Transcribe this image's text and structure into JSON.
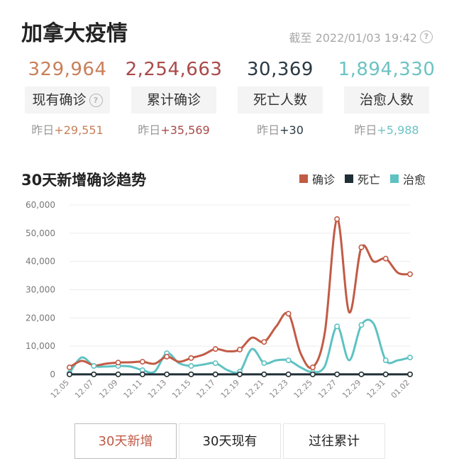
{
  "header": {
    "title": "加拿大疫情",
    "as_of": "截至 2022/01/03 19:42"
  },
  "stats": [
    {
      "value": "329,964",
      "label": "现有确诊",
      "delta": "昨日+29,551",
      "color": "#c8805a",
      "has_help": true
    },
    {
      "value": "2,254,663",
      "label": "累计确诊",
      "delta": "昨日+35,569",
      "color": "#a94a4a",
      "has_help": false
    },
    {
      "value": "30,369",
      "label": "死亡人数",
      "delta": "昨日+30",
      "color": "#2b3a44",
      "has_help": false
    },
    {
      "value": "1,894,330",
      "label": "治愈人数",
      "delta": "昨日+5,988",
      "color": "#6cc3c3",
      "has_help": false
    }
  ],
  "chart_section": {
    "title": "30天新增确诊趋势",
    "legend": [
      {
        "label": "确诊",
        "color": "#c25b46"
      },
      {
        "label": "死亡",
        "color": "#1f2f36"
      },
      {
        "label": "治愈",
        "color": "#5ec2c2"
      }
    ]
  },
  "tabs": [
    {
      "label": "30天新增",
      "active": true
    },
    {
      "label": "30天现有",
      "active": false
    },
    {
      "label": "过往累计",
      "active": false
    }
  ],
  "chart_data": {
    "type": "line",
    "x": [
      "12.05",
      "12.06",
      "12.07",
      "12.08",
      "12.09",
      "12.10",
      "12.11",
      "12.12",
      "12.13",
      "12.14",
      "12.15",
      "12.16",
      "12.17",
      "12.18",
      "12.19",
      "12.20",
      "12.21",
      "12.22",
      "12.23",
      "12.24",
      "12.25",
      "12.26",
      "12.27",
      "12.28",
      "12.29",
      "12.30",
      "12.31",
      "01.01",
      "01.02"
    ],
    "xticks": [
      "12.05",
      "12.07",
      "12.09",
      "12.11",
      "12.13",
      "12.15",
      "12.17",
      "12.19",
      "12.21",
      "12.23",
      "12.25",
      "12.27",
      "12.29",
      "12.31",
      "01.02"
    ],
    "yticks": [
      0,
      10000,
      20000,
      30000,
      40000,
      50000,
      60000
    ],
    "ytick_labels": [
      "0",
      "10,000",
      "20,000",
      "30,000",
      "40,000",
      "50,000",
      "60,000"
    ],
    "ylim": [
      0,
      60000
    ],
    "grid": true,
    "legend_position": "top-right",
    "series": [
      {
        "name": "确诊",
        "color": "#c25b46",
        "values": [
          2500,
          4800,
          3200,
          3800,
          4200,
          4300,
          4500,
          3800,
          6300,
          4500,
          5800,
          7000,
          9000,
          8200,
          8800,
          13000,
          11500,
          17000,
          21500,
          7500,
          2500,
          15000,
          55000,
          22000,
          45000,
          40000,
          41000,
          36000,
          35500
        ],
        "markers": [
          0,
          4,
          6,
          8,
          10,
          12,
          14,
          16,
          18,
          20,
          22,
          24,
          26,
          28
        ]
      },
      {
        "name": "死亡",
        "color": "#1f2f36",
        "values": [
          20,
          40,
          30,
          30,
          30,
          40,
          30,
          30,
          40,
          30,
          30,
          40,
          30,
          30,
          40,
          30,
          30,
          30,
          30,
          20,
          20,
          30,
          40,
          30,
          40,
          30,
          30,
          30,
          30
        ],
        "markers": [
          0,
          2,
          4,
          6,
          8,
          10,
          12,
          14,
          16,
          18,
          20,
          22,
          24,
          26,
          28
        ]
      },
      {
        "name": "治愈",
        "color": "#5ec2c2",
        "values": [
          500,
          6000,
          3000,
          2800,
          3000,
          2800,
          1500,
          1000,
          7500,
          4000,
          3000,
          3500,
          4000,
          1500,
          1000,
          9000,
          4000,
          5000,
          5000,
          2500,
          800,
          3000,
          17000,
          5000,
          17500,
          18000,
          5000,
          5000,
          6000
        ],
        "markers": [
          0,
          2,
          4,
          6,
          8,
          10,
          12,
          14,
          16,
          18,
          20,
          22,
          24,
          26,
          28
        ]
      }
    ]
  }
}
